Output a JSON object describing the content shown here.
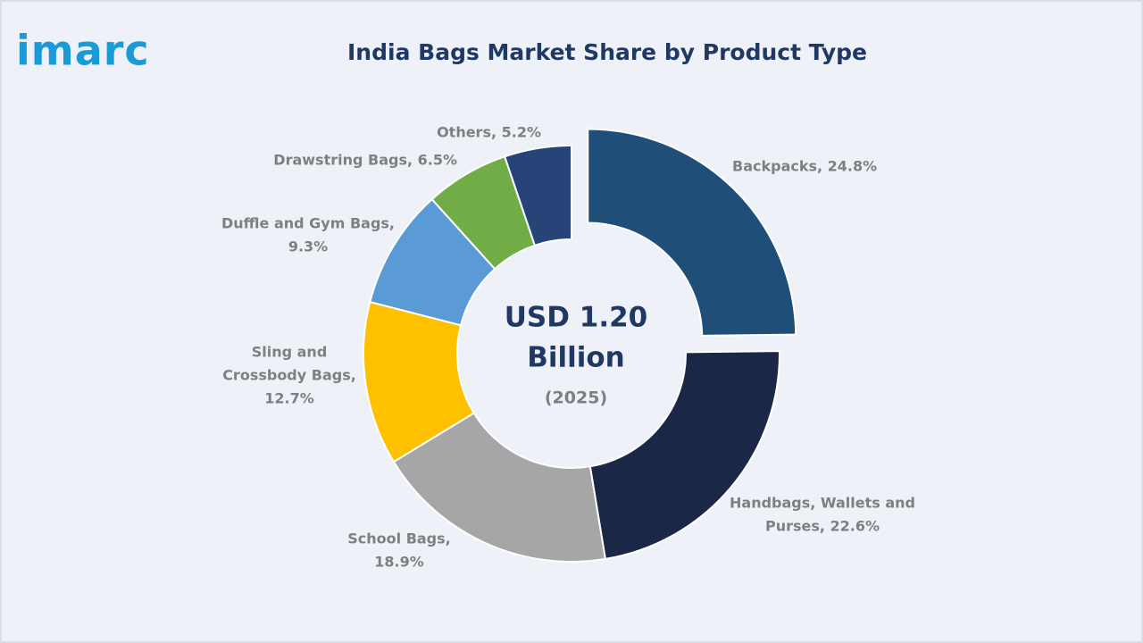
{
  "logo": "imarc",
  "chart_data": {
    "type": "donut",
    "title": "India Bags Market Share by Product Type",
    "values": [
      24.8,
      22.6,
      18.9,
      12.7,
      9.3,
      6.5,
      5.2
    ],
    "value_labels": [
      [
        "Backpacks, 24.8%"
      ],
      [
        "Handbags, Wallets and",
        "Purses, 22.6%"
      ],
      [
        "School Bags,",
        "18.9%"
      ],
      [
        "Sling and",
        "Crossbody Bags,",
        "12.7%"
      ],
      [
        "Duffle and Gym Bags,",
        "9.3%"
      ],
      [
        "Drawstring Bags, 6.5%"
      ],
      [
        "Others, 5.2%"
      ]
    ],
    "colors": [
      "#1f4e79",
      "#1b2747",
      "#a6a6a6",
      "#ffc000",
      "#5b9bd5",
      "#70ad47",
      "#264478"
    ],
    "center_label": [
      "USD 1.20",
      "Billion"
    ],
    "center_sublabel": "(2025)"
  }
}
